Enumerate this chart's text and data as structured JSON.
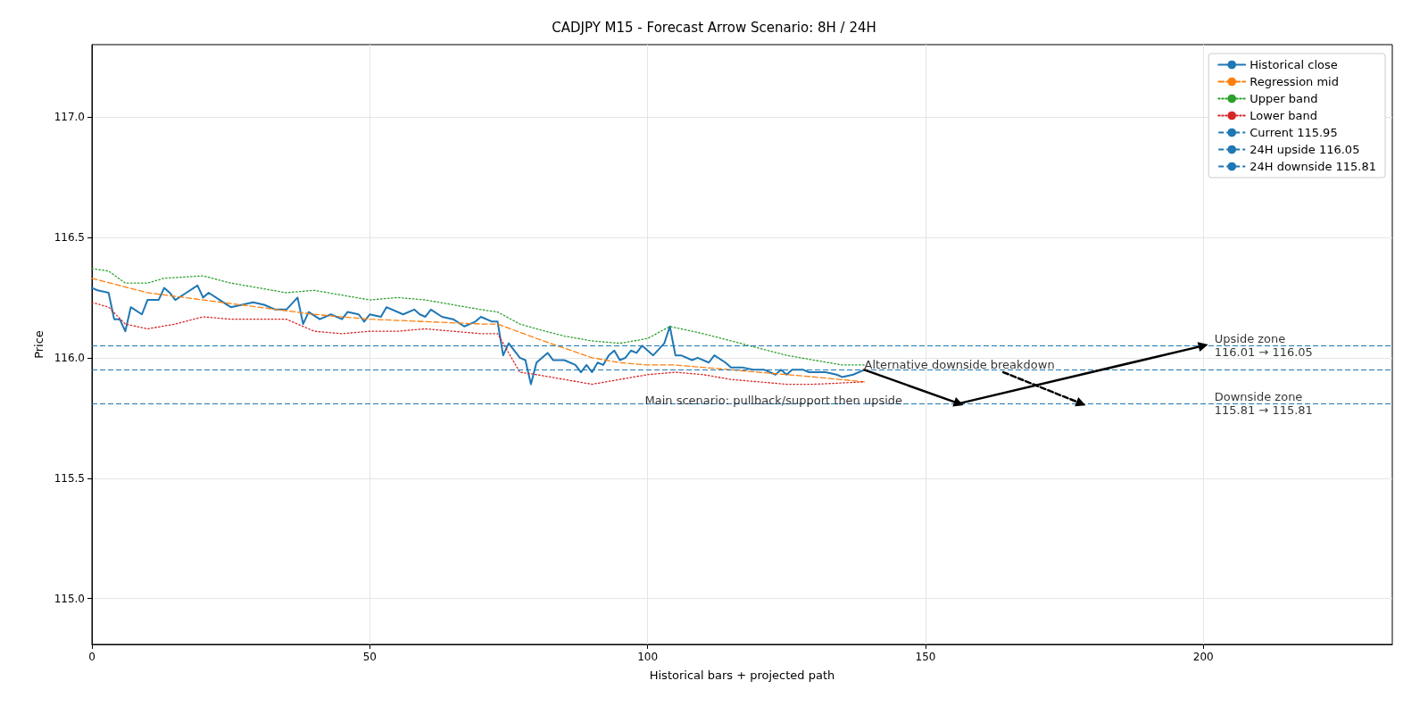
{
  "chart_data": {
    "type": "line",
    "title": "CADJPY M15 - Forecast Arrow Scenario: 8H / 24H",
    "xlabel": "Historical bars + projected path",
    "ylabel": "Price",
    "xlim": [
      0,
      234
    ],
    "xticks": [
      0,
      50,
      100,
      150,
      200
    ],
    "ylim": [
      114.81,
      117.3
    ],
    "yticks": [
      {
        "value": 115,
        "label": "115.0"
      },
      {
        "value": 115.5,
        "label": "115.5"
      },
      {
        "value": 116,
        "label": "116.0"
      },
      {
        "value": 116.5,
        "label": "116.5"
      },
      {
        "value": 117,
        "label": "117.0"
      }
    ],
    "grid": true,
    "legend": "top right",
    "marker": "none",
    "series": [
      {
        "name": "Historical close",
        "color": "#1f77b4",
        "line_style": "solid",
        "x": [
          0,
          1,
          3,
          4,
          5,
          6,
          7,
          9,
          10,
          12,
          13,
          14,
          15,
          17,
          19,
          20,
          21,
          23,
          25,
          27,
          29,
          31,
          33,
          35,
          37,
          38,
          39,
          41,
          43,
          45,
          46,
          48,
          49,
          50,
          52,
          53,
          56,
          58,
          59,
          60,
          61,
          63,
          65,
          67,
          69,
          70,
          72,
          73,
          74,
          75,
          77,
          78,
          79,
          80,
          82,
          83,
          85,
          87,
          88,
          89,
          90,
          91,
          92,
          93,
          94,
          95,
          96,
          97,
          98,
          99,
          101,
          103,
          104,
          105,
          106,
          108,
          109,
          111,
          112,
          114,
          115,
          117,
          119,
          121,
          123,
          124,
          125,
          126,
          128,
          129,
          130,
          132,
          134,
          135,
          137,
          139
        ],
        "values": [
          116.29,
          116.28,
          116.27,
          116.16,
          116.16,
          116.11,
          116.21,
          116.18,
          116.24,
          116.24,
          116.29,
          116.27,
          116.24,
          116.27,
          116.3,
          116.25,
          116.27,
          116.24,
          116.21,
          116.22,
          116.23,
          116.22,
          116.2,
          116.2,
          116.25,
          116.14,
          116.19,
          116.16,
          116.18,
          116.16,
          116.19,
          116.18,
          116.15,
          116.18,
          116.17,
          116.21,
          116.18,
          116.2,
          116.18,
          116.17,
          116.2,
          116.17,
          116.16,
          116.13,
          116.15,
          116.17,
          116.15,
          116.15,
          116.01,
          116.06,
          116,
          115.99,
          115.89,
          115.98,
          116.02,
          115.99,
          115.99,
          115.97,
          115.94,
          115.97,
          115.94,
          115.98,
          115.97,
          116.01,
          116.03,
          115.99,
          116,
          116.03,
          116.02,
          116.05,
          116.01,
          116.06,
          116.13,
          116.01,
          116.01,
          115.99,
          116,
          115.98,
          116.01,
          115.98,
          115.96,
          115.96,
          115.95,
          115.95,
          115.93,
          115.95,
          115.93,
          115.95,
          115.95,
          115.94,
          115.94,
          115.94,
          115.93,
          115.92,
          115.93,
          115.95
        ]
      },
      {
        "name": "Regression mid",
        "color": "#ff7f0e",
        "line_style": "dashed",
        "x": [
          0,
          10,
          20,
          30,
          40,
          50,
          60,
          70,
          73,
          80,
          90,
          95,
          100,
          105,
          110,
          120,
          130,
          139
        ],
        "values": [
          116.33,
          116.27,
          116.24,
          116.21,
          116.18,
          116.16,
          116.15,
          116.14,
          116.14,
          116.08,
          116,
          115.98,
          115.97,
          115.97,
          115.96,
          115.94,
          115.92,
          115.9
        ]
      },
      {
        "name": "Upper band",
        "color": "#2ca02c",
        "line_style": "dotted",
        "x": [
          0,
          3,
          6,
          10,
          13,
          20,
          25,
          35,
          40,
          45,
          50,
          55,
          60,
          65,
          70,
          73,
          77,
          80,
          85,
          90,
          95,
          100,
          104,
          110,
          115,
          120,
          125,
          130,
          135,
          139
        ],
        "values": [
          116.37,
          116.36,
          116.31,
          116.31,
          116.33,
          116.34,
          116.31,
          116.27,
          116.28,
          116.26,
          116.24,
          116.25,
          116.24,
          116.22,
          116.2,
          116.19,
          116.14,
          116.12,
          116.09,
          116.07,
          116.06,
          116.08,
          116.13,
          116.1,
          116.07,
          116.04,
          116.01,
          115.99,
          115.97,
          115.97
        ]
      },
      {
        "name": "Lower band",
        "color": "#d62728",
        "line_style": "dotted",
        "x": [
          0,
          3,
          6,
          10,
          15,
          20,
          25,
          35,
          38,
          40,
          45,
          50,
          55,
          60,
          65,
          70,
          73,
          77,
          80,
          85,
          90,
          95,
          100,
          105,
          110,
          115,
          120,
          125,
          130,
          139
        ],
        "values": [
          116.23,
          116.21,
          116.14,
          116.12,
          116.14,
          116.17,
          116.16,
          116.16,
          116.13,
          116.11,
          116.1,
          116.11,
          116.11,
          116.12,
          116.11,
          116.1,
          116.1,
          115.94,
          115.93,
          115.91,
          115.89,
          115.91,
          115.93,
          115.94,
          115.93,
          115.91,
          115.9,
          115.89,
          115.89,
          115.9
        ]
      },
      {
        "color": "#000000",
        "line_style": "solid",
        "marker": "triangle",
        "x": [
          139,
          156,
          200
        ],
        "values": [
          115.95,
          115.81,
          116.05
        ]
      },
      {
        "color": "#000000",
        "line_style": "dashed",
        "marker": "triangle",
        "x": [
          164,
          178
        ],
        "values": [
          115.94,
          115.81
        ]
      }
    ],
    "ref_lines": [
      {
        "axis": "y",
        "value": 115.95,
        "label": "Current 115.95",
        "color": "#1f77b4",
        "line_style": "dashed"
      },
      {
        "axis": "y",
        "value": 116.05,
        "label": "24H upside 116.05",
        "color": "#1f77b4",
        "line_style": "dashed"
      },
      {
        "axis": "y",
        "value": 115.81,
        "label": "24H downside 115.81",
        "color": "#1f77b4",
        "line_style": "dashed"
      }
    ],
    "annotations": [
      {
        "text": "Alternative downside breakdown",
        "x": 139,
        "y": 115.97
      },
      {
        "text": "Main scenario: pullback/support then upside",
        "x": 99.5,
        "y": 115.825
      },
      {
        "text": "Upside zone\n116.01 → 116.05",
        "x": 202,
        "y": 116.05
      },
      {
        "text": "Downside zone\n115.81 → 115.81",
        "x": 202,
        "y": 115.81
      }
    ]
  }
}
